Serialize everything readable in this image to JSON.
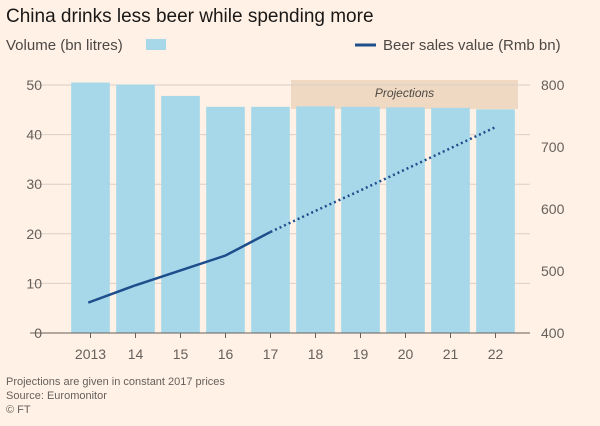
{
  "chart_data": {
    "type": "bar",
    "title": "China drinks less beer while spending more",
    "categories": [
      "2013",
      "14",
      "15",
      "16",
      "17",
      "18",
      "19",
      "20",
      "21",
      "22"
    ],
    "series": [
      {
        "name": "Volume (bn litres)",
        "type": "bar",
        "axis": "left",
        "color": "#a7d8ea",
        "values": [
          50.5,
          50.1,
          47.8,
          45.6,
          45.6,
          45.7,
          45.6,
          45.5,
          45.4,
          45.1
        ]
      },
      {
        "name": "Beer sales value (Rmb bn)",
        "type": "line",
        "axis": "right",
        "color": "#1f4e8c",
        "values": [
          449,
          477,
          501,
          525,
          563,
          597,
          630,
          664,
          698,
          732
        ],
        "projected_from_index": 4
      }
    ],
    "ylim_left": [
      0,
      50
    ],
    "yticks_left": [
      0,
      10,
      20,
      30,
      40,
      50
    ],
    "ylim_right": [
      400,
      800
    ],
    "yticks_right": [
      400,
      500,
      600,
      700,
      800
    ],
    "projection_label": "Projections",
    "projection_start_category": "18",
    "grid": true
  },
  "footer": {
    "note": "Projections are given in constant 2017 prices",
    "source": "Source: Euromonitor",
    "credit": "© FT"
  },
  "colors": {
    "background": "#fff1e5",
    "projection_band": "#efd9c2",
    "bar": "#a7d8ea",
    "line": "#1f4e8c",
    "grid": "#d9cfc6"
  }
}
